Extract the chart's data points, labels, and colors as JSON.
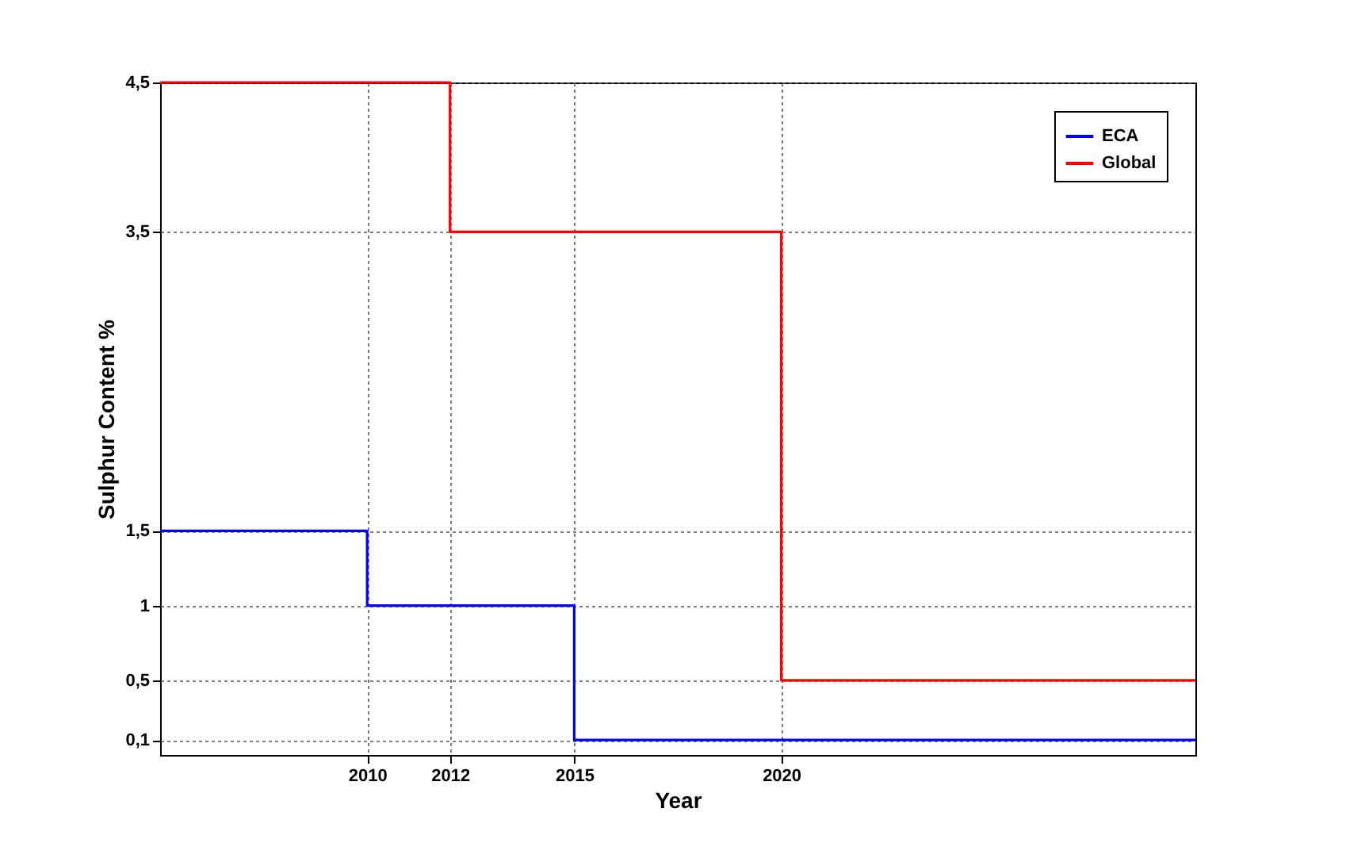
{
  "chart_data": {
    "type": "step",
    "xlabel": "Year",
    "ylabel": "Sulphur Content %",
    "xlim": [
      2005,
      2030
    ],
    "xticks": [
      2010,
      2012,
      2015,
      2020
    ],
    "ylim": [
      0,
      4.5
    ],
    "yticks": [
      {
        "value": 0.1,
        "label": "0,1"
      },
      {
        "value": 0.5,
        "label": "0,5"
      },
      {
        "value": 1,
        "label": "1"
      },
      {
        "value": 1.5,
        "label": "1,5"
      },
      {
        "value": 3.5,
        "label": "3,5"
      },
      {
        "value": 4.5,
        "label": "4,5"
      }
    ],
    "grid": true,
    "legend": "top right",
    "series": [
      {
        "name": "ECA",
        "color": "#0000ff",
        "x": [
          2005,
          2010,
          2015,
          2030
        ],
        "values": [
          1.5,
          1,
          0.1,
          0.1
        ]
      },
      {
        "name": "Global",
        "color": "#ff0000",
        "x": [
          2005,
          2012,
          2020,
          2030
        ],
        "values": [
          4.5,
          3.5,
          0.5,
          0.5
        ]
      }
    ]
  }
}
